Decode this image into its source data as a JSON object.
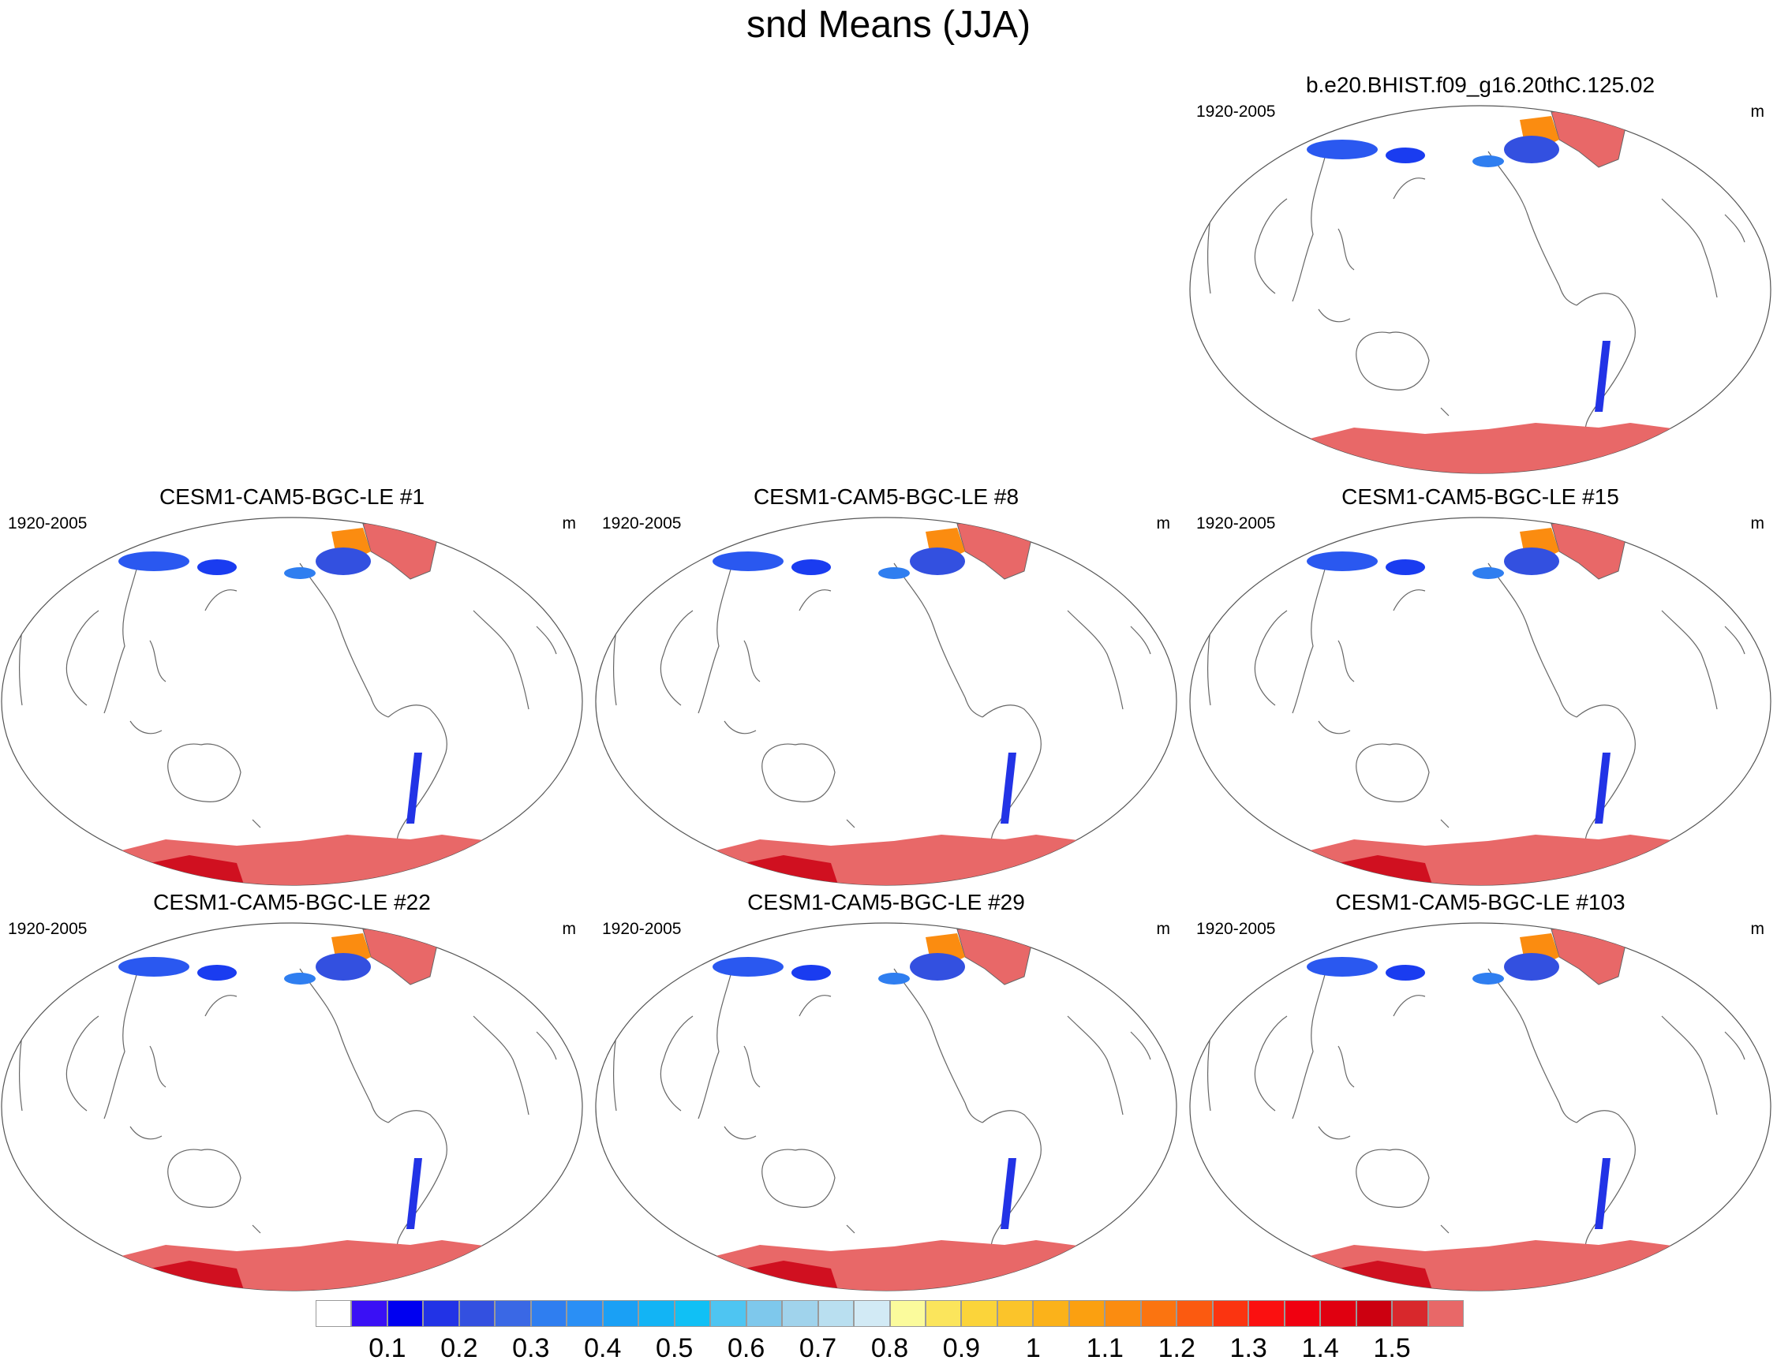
{
  "title": "snd Means (JJA)",
  "units": "m",
  "period": "1920-2005",
  "panels": [
    {
      "id": "obs",
      "title": "b.e20.BHIST.f09_g16.20thC.125.02"
    },
    {
      "id": "m1",
      "title": "CESM1-CAM5-BGC-LE #1"
    },
    {
      "id": "m8",
      "title": "CESM1-CAM5-BGC-LE #8"
    },
    {
      "id": "m15",
      "title": "CESM1-CAM5-BGC-LE #15"
    },
    {
      "id": "m22",
      "title": "CESM1-CAM5-BGC-LE #22"
    },
    {
      "id": "m29",
      "title": "CESM1-CAM5-BGC-LE #29"
    },
    {
      "id": "m103",
      "title": "CESM1-CAM5-BGC-LE #103"
    }
  ],
  "colorbar": {
    "colors": [
      "#ffffff",
      "#3a10f5",
      "#0000f0",
      "#2233e6",
      "#3350e0",
      "#3a68e5",
      "#2f7ef0",
      "#2a8ff5",
      "#1aa0f5",
      "#12b4f5",
      "#10c0f5",
      "#4ec5f2",
      "#7ec8ec",
      "#a0d3ec",
      "#b9dff0",
      "#d2eaf5",
      "#fbfb9c",
      "#fbe55c",
      "#fbd43a",
      "#fbc42a",
      "#fbb21a",
      "#fba010",
      "#fb8c10",
      "#fb7410",
      "#fb5a10",
      "#fb3410",
      "#fb1010",
      "#f00010",
      "#e00010",
      "#cc0010",
      "#d8282c",
      "#e86868"
    ],
    "labels": [
      "0.1",
      "0.2",
      "0.3",
      "0.4",
      "0.5",
      "0.6",
      "0.7",
      "0.8",
      "0.9",
      "1",
      "1.1",
      "1.2",
      "1.3",
      "1.4",
      "1.5"
    ]
  }
}
